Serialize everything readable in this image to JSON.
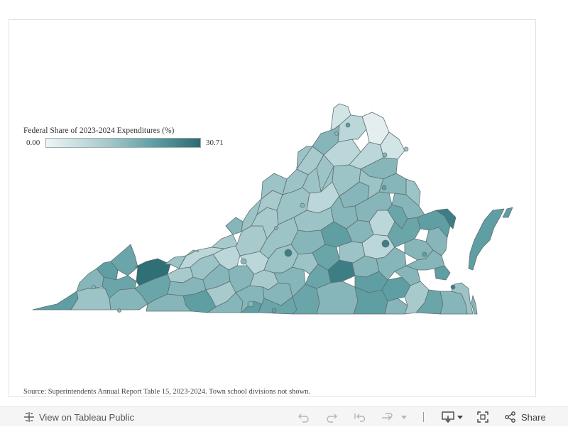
{
  "legend": {
    "title": "Federal Share of 2023-2024 Expenditures (%)",
    "min_label": "0.00",
    "max_label": "30.71",
    "color_low": "#eef4f4",
    "color_high": "#2d6b72"
  },
  "source_note": "Source: Superintendents Annual Report Table 15, 2023-2024. Town school divisions not shown.",
  "toolbar": {
    "view_label": "View on Tableau Public",
    "share_label": "Share"
  },
  "icons": [
    "tableau-logo-icon",
    "undo-icon",
    "redo-icon",
    "revert-icon",
    "refresh-icon",
    "dropdown-icon",
    "download-icon",
    "fullscreen-icon",
    "share-icon"
  ],
  "colors": {
    "border": "#5e6f72",
    "toolbar_bg": "#f5f5f5"
  },
  "map": {
    "region": "Virginia school divisions",
    "value_min": 0.0,
    "value_max": 30.71
  }
}
